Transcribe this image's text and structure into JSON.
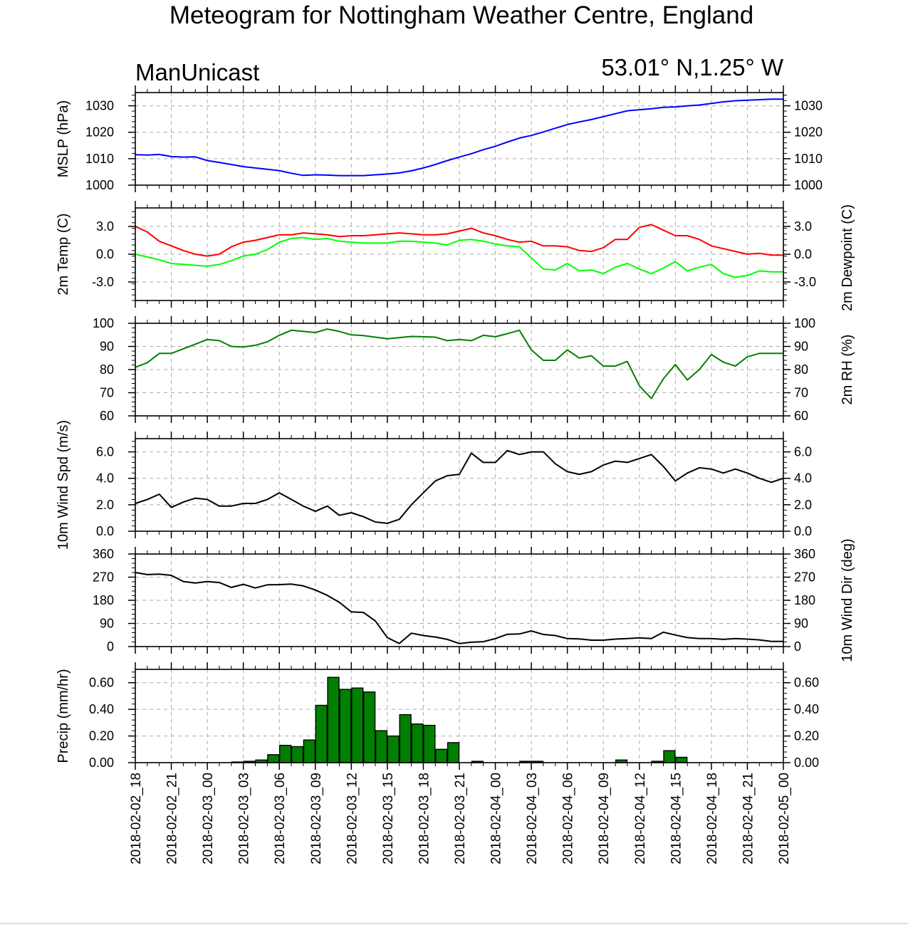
{
  "title": "Meteogram for Nottingham Weather Centre, England",
  "model": "ManUnicast",
  "location": "53.01° N,1.25° W",
  "colors": {
    "mslp": "#0000ff",
    "temp": "#ff0000",
    "dewpoint": "#00ff00",
    "rh": "#008000",
    "wind": "#000000",
    "precip_fill": "#008000"
  },
  "chart_data": [
    {
      "type": "line",
      "ylabel": "MSLP (hPa)",
      "ylim": [
        1000,
        1035
      ],
      "yticks": [
        1000,
        1010,
        1020,
        1030
      ],
      "tick_format": "0",
      "series": [
        {
          "values": [
            1011.5,
            1011.4,
            1011.6,
            1010.8,
            1010.6,
            1010.7,
            1009.3,
            1008.6,
            1007.8,
            1007,
            1006.5,
            1006,
            1005.5,
            1004.5,
            1003.7,
            1003.9,
            1003.8,
            1003.6,
            1003.6,
            1003.6,
            1003.9,
            1004.2,
            1004.6,
            1005.4,
            1006.5,
            1007.8,
            1009.3,
            1010.6,
            1011.9,
            1013.4,
            1014.7,
            1016.3,
            1017.8,
            1018.8,
            1020.1,
            1021.5,
            1022.9,
            1023.9,
            1024.8,
            1025.9,
            1027,
            1028.1,
            1028.5,
            1028.9,
            1029.4,
            1029.6,
            1030,
            1030.3,
            1030.9,
            1031.5,
            1031.9,
            1032.1,
            1032.3,
            1032.5,
            1032.5
          ]
        }
      ]
    },
    {
      "type": "line",
      "ylabel": "2m Temp (C)",
      "ylabel_right": "2m Dewpoint (C)",
      "ylim": [
        -5,
        5
      ],
      "yticks": [
        -3,
        0,
        3
      ],
      "tick_format": "0.0",
      "series": [
        {
          "values": [
            3,
            2.4,
            1.4,
            0.9,
            0.4,
            0,
            -0.2,
            0,
            0.8,
            1.3,
            1.5,
            1.8,
            2.1,
            2.1,
            2.3,
            2.2,
            2.1,
            1.9,
            2,
            2,
            2.1,
            2.2,
            2.3,
            2.2,
            2.1,
            2.1,
            2.2,
            2.5,
            2.8,
            2.3,
            2,
            1.6,
            1.3,
            1.4,
            0.9,
            0.9,
            0.8,
            0.4,
            0.3,
            0.7,
            1.6,
            1.6,
            2.9,
            3.2,
            2.6,
            2,
            2,
            1.6,
            0.9,
            0.6,
            0.3,
            0,
            0.1,
            -0.1,
            -0.1
          ]
        },
        {
          "values": [
            0,
            -0.3,
            -0.6,
            -1,
            -1.1,
            -1.2,
            -1.3,
            -1.1,
            -0.7,
            -0.2,
            0,
            0.5,
            1.3,
            1.7,
            1.8,
            1.6,
            1.7,
            1.4,
            1.3,
            1.2,
            1.2,
            1.2,
            1.4,
            1.4,
            1.3,
            1.2,
            1,
            1.5,
            1.6,
            1.4,
            1.1,
            0.9,
            0.8,
            -0.4,
            -1.6,
            -1.7,
            -1,
            -1.8,
            -1.7,
            -2.1,
            -1.4,
            -1,
            -1.6,
            -2.1,
            -1.5,
            -0.8,
            -1.8,
            -1.4,
            -1.1,
            -2.1,
            -2.5,
            -2.3,
            -1.8,
            -1.9,
            -1.9
          ]
        }
      ]
    },
    {
      "type": "line",
      "ylabel": "2m RH (%)",
      "label_side": "right",
      "ylim": [
        60,
        100
      ],
      "yticks": [
        60,
        70,
        80,
        90,
        100
      ],
      "tick_format": "0",
      "series": [
        {
          "values": [
            81,
            83,
            87,
            87,
            89,
            91,
            93,
            92.5,
            90,
            89.8,
            90.5,
            92,
            94.8,
            97,
            96.5,
            96,
            97.5,
            96.5,
            95,
            94.7,
            94,
            93.3,
            93.8,
            94.3,
            94.2,
            94,
            92.5,
            93,
            92.5,
            94.8,
            94.2,
            95.5,
            97,
            88.5,
            84,
            84,
            88.5,
            85,
            86,
            81.5,
            81.5,
            83.5,
            73,
            67.5,
            76,
            82.2,
            75.5,
            80,
            86.5,
            83.2,
            81.5,
            85.5,
            87,
            87,
            87
          ]
        }
      ]
    },
    {
      "type": "line",
      "ylabel": "10m Wind Spd (m/s)",
      "ylim": [
        0,
        7
      ],
      "yticks": [
        0,
        2,
        4,
        6
      ],
      "tick_format": "0.0",
      "series": [
        {
          "values": [
            2.1,
            2.4,
            2.8,
            1.8,
            2.2,
            2.5,
            2.4,
            1.9,
            1.9,
            2.1,
            2.1,
            2.4,
            2.9,
            2.4,
            1.9,
            1.5,
            1.9,
            1.2,
            1.4,
            1.1,
            0.7,
            0.6,
            0.9,
            2,
            2.9,
            3.8,
            4.2,
            4.3,
            5.9,
            5.2,
            5.2,
            6.1,
            5.8,
            6,
            6,
            5.1,
            4.5,
            4.3,
            4.5,
            5,
            5.3,
            5.2,
            5.5,
            5.8,
            4.9,
            3.8,
            4.4,
            4.8,
            4.7,
            4.4,
            4.7,
            4.4,
            4,
            3.7,
            4
          ]
        }
      ]
    },
    {
      "type": "line",
      "ylabel": "10m Wind Dir (deg)",
      "label_side": "right",
      "ylim": [
        0,
        360
      ],
      "yticks": [
        0,
        90,
        180,
        270,
        360
      ],
      "tick_format": "0",
      "series": [
        {
          "values": [
            288,
            280,
            282,
            277,
            253,
            247,
            253,
            249,
            230,
            242,
            228,
            240,
            241,
            243,
            236,
            220,
            199,
            172,
            135,
            133,
            100,
            35,
            12,
            52,
            43,
            37,
            28,
            12,
            17,
            19,
            31,
            48,
            49,
            61,
            47,
            43,
            31,
            30,
            25,
            25,
            29,
            31,
            34,
            31,
            56,
            45,
            35,
            31,
            31,
            28,
            31,
            29,
            26,
            20,
            20
          ]
        }
      ]
    },
    {
      "type": "bar",
      "ylabel": "Precip (mm/hr)",
      "ylim": [
        0,
        0.7
      ],
      "yticks": [
        0,
        0.2,
        0.4,
        0.6
      ],
      "tick_format": "0.00",
      "values": [
        0,
        0,
        0,
        0,
        0,
        0,
        0,
        0,
        0.005,
        0.01,
        0.02,
        0.06,
        0.13,
        0.12,
        0.17,
        0.43,
        0.64,
        0.55,
        0.56,
        0.53,
        0.24,
        0.2,
        0.36,
        0.29,
        0.28,
        0.1,
        0.15,
        0,
        0.01,
        0,
        0,
        0,
        0.01,
        0.01,
        0,
        0,
        0,
        0,
        0,
        0,
        0.02,
        0,
        0,
        0.01,
        0.09,
        0.04,
        0,
        0,
        0,
        0,
        0,
        0,
        0,
        0
      ]
    }
  ],
  "x_axis": {
    "categories": [
      "2018-02-02_18",
      "2018-02-02_21",
      "2018-02-03_00",
      "2018-02-03_03",
      "2018-02-03_06",
      "2018-02-03_09",
      "2018-02-03_12",
      "2018-02-03_15",
      "2018-02-03_18",
      "2018-02-03_21",
      "2018-02-04_00",
      "2018-02-04_03",
      "2018-02-04_06",
      "2018-02-04_09",
      "2018-02-04_12",
      "2018-02-04_15",
      "2018-02-04_18",
      "2018-02-04_21",
      "2018-02-05_00"
    ]
  }
}
